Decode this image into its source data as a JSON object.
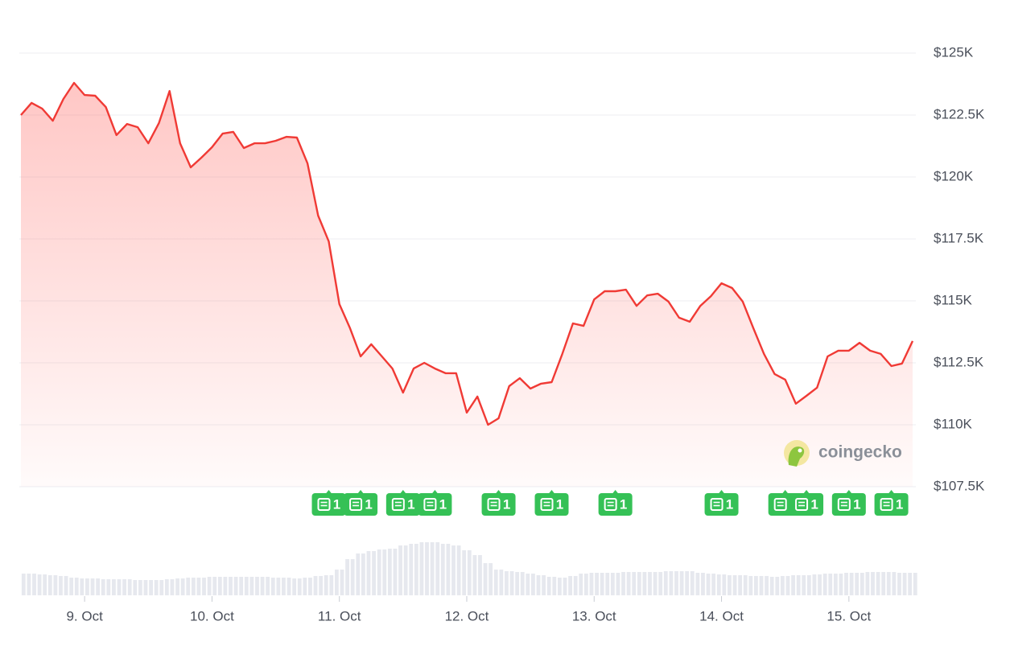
{
  "chart_data": {
    "type": "line",
    "categories": [
      null,
      null,
      null,
      null,
      null,
      null,
      "9. Oct",
      null,
      null,
      null,
      null,
      null,
      null,
      null,
      null,
      null,
      null,
      null,
      "10. Oct",
      null,
      null,
      null,
      null,
      null,
      null,
      null,
      null,
      null,
      null,
      null,
      "11. Oct",
      null,
      null,
      null,
      null,
      null,
      null,
      null,
      null,
      null,
      null,
      null,
      "12. Oct",
      null,
      null,
      null,
      null,
      null,
      null,
      null,
      null,
      null,
      null,
      null,
      "13. Oct",
      null,
      null,
      null,
      null,
      null,
      null,
      null,
      null,
      null,
      null,
      null,
      "14. Oct",
      null,
      null,
      null,
      null,
      null,
      null,
      null,
      null,
      null,
      null,
      null,
      "15. Oct",
      null,
      null,
      null,
      null,
      null,
      null
    ],
    "series": [
      {
        "color": "#f03a35",
        "values": [
          122500,
          122990,
          122760,
          122270,
          123150,
          123800,
          123310,
          123280,
          122820,
          121690,
          122140,
          122010,
          121360,
          122180,
          123470,
          121360,
          120390,
          120780,
          121200,
          121750,
          121820,
          121170,
          121360,
          121360,
          121460,
          121620,
          121590,
          120550,
          118440,
          117400,
          114870,
          113900,
          112760,
          113250,
          112760,
          112270,
          111300,
          112270,
          112500,
          112270,
          112080,
          112080,
          110490,
          111140,
          110000,
          110260,
          111560,
          111880,
          111460,
          111660,
          111720,
          112860,
          114090,
          113990,
          115060,
          115390,
          115390,
          115450,
          114800,
          115220,
          115290,
          114970,
          114320,
          114160,
          114800,
          115190,
          115710,
          115520,
          114970,
          113900,
          112860,
          112050,
          111820,
          110850,
          111170,
          111500,
          112760,
          112990,
          112990,
          113310,
          112990,
          112860,
          112370,
          112470,
          113380
        ]
      }
    ],
    "ylim": [
      107500,
      125000
    ],
    "yticks": [
      {
        "value": 107500,
        "label": "$107.5K"
      },
      {
        "value": 110000,
        "label": "$110K"
      },
      {
        "value": 112500,
        "label": "$112.5K"
      },
      {
        "value": 115000,
        "label": "$115K"
      },
      {
        "value": 117500,
        "label": "$117.5K"
      },
      {
        "value": 120000,
        "label": "$120K"
      },
      {
        "value": 122500,
        "label": "$122.5K"
      },
      {
        "value": 125000,
        "label": "$125K"
      }
    ],
    "grid": true,
    "area": true,
    "volume": {
      "color": "#e6e8ee",
      "ylim": [
        0,
        70
      ],
      "values": [
        27,
        27,
        26,
        25,
        24,
        22,
        21,
        21,
        20,
        20,
        20,
        19,
        19,
        19,
        20,
        21,
        22,
        22,
        23,
        23,
        23,
        23,
        23,
        23,
        22,
        22,
        21,
        22,
        24,
        25,
        32,
        45,
        52,
        55,
        57,
        58,
        62,
        64,
        66,
        66,
        64,
        62,
        56,
        50,
        40,
        32,
        30,
        29,
        27,
        25,
        23,
        22,
        24,
        27,
        28,
        28,
        28,
        29,
        29,
        29,
        29,
        30,
        30,
        30,
        28,
        27,
        26,
        25,
        25,
        24,
        24,
        23,
        24,
        25,
        25,
        26,
        27,
        27,
        28,
        28,
        29,
        29,
        29,
        28,
        28
      ]
    },
    "news": {
      "color": "#35c156",
      "counts": [
        null,
        null,
        null,
        null,
        null,
        null,
        null,
        null,
        null,
        null,
        null,
        null,
        null,
        null,
        null,
        null,
        null,
        null,
        null,
        null,
        null,
        null,
        null,
        null,
        null,
        null,
        null,
        null,
        null,
        1,
        null,
        null,
        1,
        null,
        null,
        null,
        1,
        null,
        null,
        1,
        null,
        null,
        null,
        null,
        null,
        1,
        null,
        null,
        null,
        null,
        1,
        null,
        null,
        null,
        null,
        null,
        1,
        null,
        null,
        null,
        null,
        null,
        null,
        null,
        null,
        null,
        1,
        null,
        null,
        null,
        null,
        null,
        2,
        null,
        1,
        null,
        null,
        null,
        1,
        null,
        null,
        null,
        1,
        null,
        null
      ]
    },
    "watermark": "coingecko"
  }
}
